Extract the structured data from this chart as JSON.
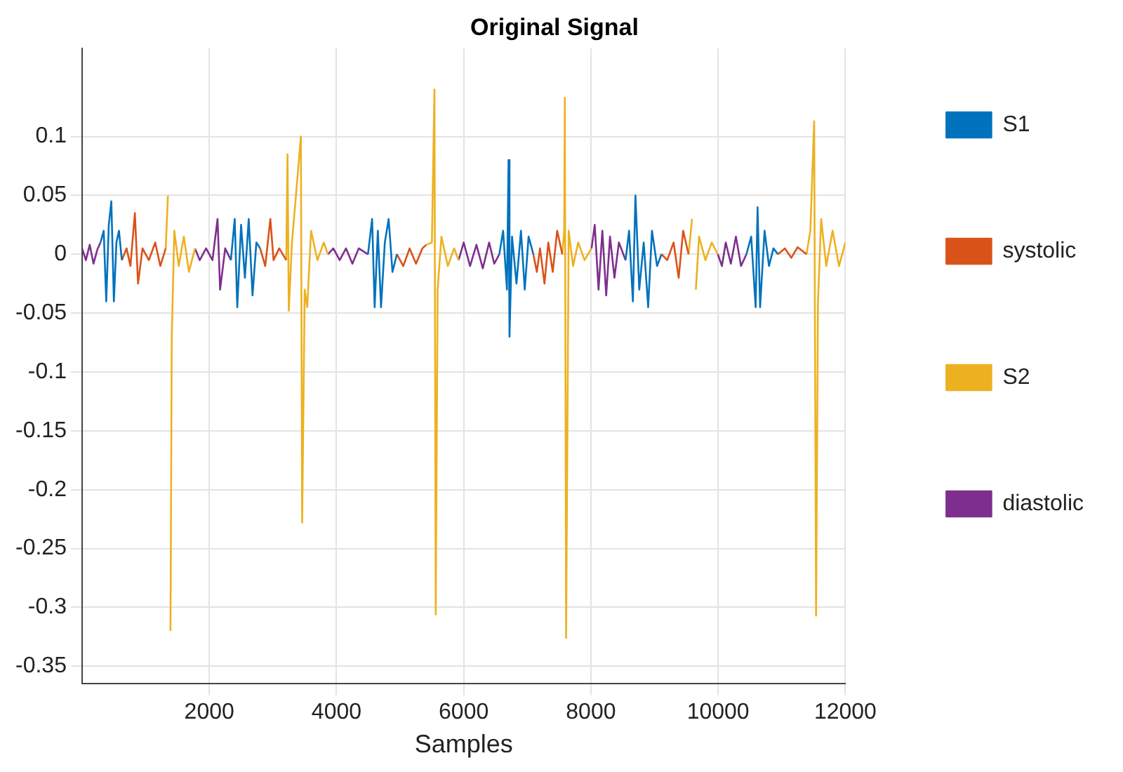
{
  "chart_data": {
    "type": "line",
    "title": "Original Signal",
    "xlabel": "Samples",
    "xlim": [
      0,
      12000
    ],
    "xticks": [
      2000,
      4000,
      6000,
      8000,
      10000,
      12000
    ],
    "ylim": [
      -0.365,
      0.175
    ],
    "yticks": [
      -0.35,
      -0.3,
      -0.25,
      -0.2,
      -0.15,
      -0.1,
      -0.05,
      0,
      0.05,
      0.1
    ],
    "grid": true,
    "legend": "right",
    "marker": "none",
    "line_style": "solid",
    "series": [
      {
        "name": "S1",
        "color": "#0072bd",
        "x": [
          290,
          340,
          380,
          420,
          460,
          500,
          540,
          580,
          625,
          1500,
          2340,
          2400,
          2440,
          2500,
          2560,
          2620,
          2680,
          2740,
          2800,
          3500,
          4495,
          4560,
          4600,
          4650,
          4700,
          4760,
          4820,
          4880,
          4950,
          6000,
          6560,
          6620,
          6680,
          6705,
          6720,
          6760,
          6830,
          6900,
          6960,
          7020,
          7095,
          8000,
          8545,
          8600,
          8660,
          8700,
          8760,
          8830,
          8900,
          8960,
          9040,
          9110,
          10000,
          10445,
          10520,
          10590,
          10620,
          10660,
          10730,
          10800,
          10870,
          10940
        ],
        "values": [
          0.01,
          0.02,
          -0.04,
          0.025,
          0.045,
          -0.04,
          0.01,
          0.02,
          -0.005,
          null,
          -0.005,
          0.03,
          -0.045,
          0.025,
          -0.02,
          0.03,
          -0.035,
          0.01,
          0.005,
          null,
          0,
          0.03,
          -0.045,
          0.02,
          -0.045,
          0.01,
          0.03,
          -0.015,
          0,
          null,
          0,
          0.02,
          -0.03,
          0.08,
          -0.07,
          0.015,
          -0.025,
          0.02,
          -0.03,
          0.015,
          0,
          null,
          -0.005,
          0.02,
          -0.04,
          0.05,
          -0.03,
          0.01,
          -0.045,
          0.02,
          -0.01,
          0,
          null,
          0,
          0.015,
          -0.045,
          0.04,
          -0.045,
          0.02,
          -0.01,
          0.005,
          0
        ]
      },
      {
        "name": "systolic",
        "color": "#d95319",
        "x": [
          625,
          700,
          760,
          830,
          880,
          950,
          1050,
          1150,
          1230,
          1315,
          2000,
          2800,
          2880,
          2960,
          3010,
          3100,
          3210,
          4000,
          4950,
          5050,
          5150,
          5250,
          5350,
          5410,
          6000,
          7095,
          7150,
          7200,
          7270,
          7330,
          7400,
          7470,
          7550,
          8500,
          9110,
          9200,
          9300,
          9380,
          9450,
          9535,
          10500,
          10940,
          11050,
          11150,
          11250,
          11390
        ],
        "values": [
          -0.005,
          0.005,
          -0.01,
          0.035,
          -0.025,
          0.005,
          -0.005,
          0.01,
          -0.01,
          0.005,
          null,
          0.005,
          -0.01,
          0.03,
          -0.005,
          0.005,
          -0.005,
          null,
          0,
          -0.01,
          0.005,
          -0.008,
          0.005,
          0.008,
          null,
          0,
          -0.015,
          0.005,
          -0.025,
          0.01,
          -0.015,
          0.02,
          0,
          null,
          0,
          -0.005,
          0.01,
          -0.02,
          0.02,
          0,
          null,
          0,
          0.005,
          -0.003,
          0.006,
          0
        ]
      },
      {
        "name": "S2",
        "color": "#edb120",
        "x": [
          1315,
          1350,
          1375,
          1390,
          1410,
          1450,
          1520,
          1600,
          1680,
          1775,
          2500,
          3210,
          3230,
          3250,
          3300,
          3440,
          3460,
          3500,
          3540,
          3600,
          3700,
          3800,
          3865,
          4500,
          5410,
          5500,
          5540,
          5560,
          5590,
          5650,
          5750,
          5850,
          5920,
          6500,
          7550,
          7580,
          7590,
          7610,
          7650,
          7720,
          7800,
          7900,
          8010,
          9000,
          9535,
          9590,
          9610,
          9625,
          9650,
          9700,
          9800,
          9900,
          9995,
          10500,
          11390,
          11450,
          11510,
          11540,
          11570,
          11620,
          11700,
          11800,
          11900,
          12000
        ],
        "values": [
          0.005,
          0.05,
          null,
          -0.32,
          -0.07,
          0.02,
          -0.01,
          0.015,
          -0.015,
          0.005,
          null,
          -0.005,
          0.085,
          -0.048,
          0.01,
          0.1,
          -0.228,
          -0.03,
          -0.045,
          0.02,
          -0.005,
          0.01,
          0,
          null,
          0.008,
          0.01,
          0.14,
          -0.306,
          -0.03,
          0.015,
          -0.01,
          0.005,
          -0.005,
          null,
          0,
          0.02,
          0.133,
          -0.326,
          0.02,
          -0.01,
          0.01,
          -0.005,
          0.005,
          null,
          0,
          0.03,
          null,
          null,
          -0.03,
          0.015,
          -0.005,
          0.01,
          0,
          null,
          0,
          0.02,
          0.113,
          -0.307,
          -0.04,
          0.03,
          -0.01,
          0.02,
          -0.01,
          0.01
        ]
      },
      {
        "name": "diastolic",
        "color": "#7e2f8e",
        "x": [
          0,
          60,
          120,
          180,
          240,
          290,
          1000,
          1775,
          1850,
          1950,
          2050,
          2130,
          2170,
          2250,
          2340,
          3000,
          3865,
          3950,
          4050,
          4150,
          4250,
          4350,
          4495,
          5000,
          5920,
          6000,
          6100,
          6200,
          6300,
          6400,
          6480,
          6560,
          7000,
          8010,
          8060,
          8120,
          8180,
          8240,
          8300,
          8370,
          8440,
          8545,
          9000,
          9995,
          10060,
          10120,
          10200,
          10280,
          10360,
          10445
        ],
        "values": [
          0.005,
          -0.005,
          0.008,
          -0.008,
          0.004,
          0.01,
          null,
          0.005,
          -0.005,
          0.005,
          -0.005,
          0.03,
          -0.03,
          0.005,
          -0.005,
          null,
          0,
          0.005,
          -0.005,
          0.005,
          -0.008,
          0.005,
          0,
          null,
          -0.005,
          0.01,
          -0.01,
          0.008,
          -0.012,
          0.01,
          -0.008,
          0,
          null,
          0.005,
          0.025,
          -0.03,
          0.02,
          -0.035,
          0.015,
          -0.02,
          0.01,
          -0.005,
          null,
          0,
          -0.01,
          0.01,
          -0.008,
          0.015,
          -0.01,
          0
        ]
      }
    ]
  }
}
